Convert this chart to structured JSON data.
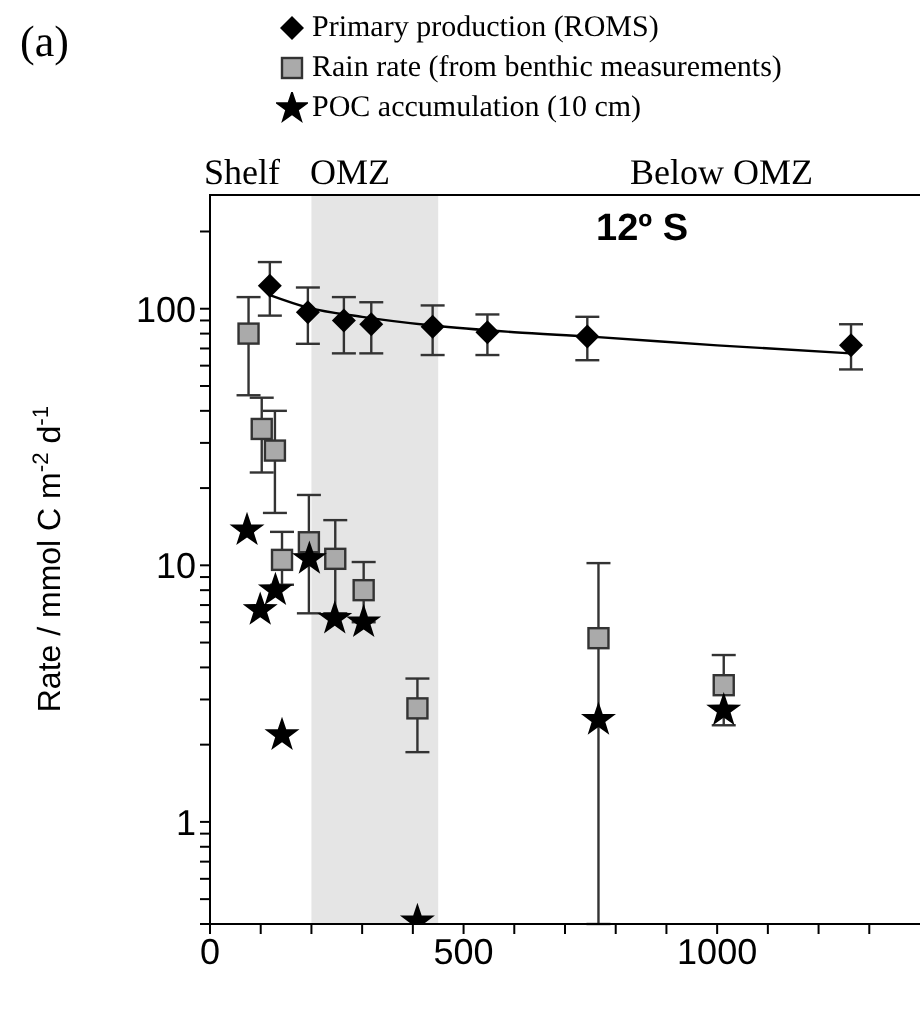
{
  "chart_data": {
    "type": "scatter",
    "ylabel": "Rate / mmol C m$^{-2}$ d$^{-1}$",
    "log": "y",
    "xlim": [
      0,
      1400
    ],
    "xticks": [
      0,
      {
        "value": 100,
        "label": null
      },
      {
        "value": 200,
        "label": null
      },
      {
        "value": 300,
        "label": null
      },
      {
        "value": 400,
        "label": null
      },
      500,
      {
        "value": 600,
        "label": null
      },
      {
        "value": 700,
        "label": null
      },
      {
        "value": 800,
        "label": null
      },
      {
        "value": 900,
        "label": null
      },
      1000,
      {
        "value": 1100,
        "label": null
      },
      {
        "value": 1200,
        "label": null
      },
      {
        "value": 1300,
        "label": null
      }
    ],
    "ylim": [
      0.4,
      280
    ],
    "yticks": [
      {
        "value": 0.4,
        "label": null
      },
      {
        "value": 0.5,
        "label": null
      },
      {
        "value": 0.6,
        "label": null
      },
      {
        "value": 0.7,
        "label": null
      },
      {
        "value": 0.8,
        "label": null
      },
      {
        "value": 0.9,
        "label": null
      },
      1,
      {
        "value": 2,
        "label": null
      },
      {
        "value": 3,
        "label": null
      },
      {
        "value": 4,
        "label": null
      },
      {
        "value": 5,
        "label": null
      },
      {
        "value": 6,
        "label": null
      },
      {
        "value": 7,
        "label": null
      },
      {
        "value": 8,
        "label": null
      },
      {
        "value": 9,
        "label": null
      },
      10,
      {
        "value": 20,
        "label": null
      },
      {
        "value": 30,
        "label": null
      },
      {
        "value": 40,
        "label": null
      },
      {
        "value": 50,
        "label": null
      },
      {
        "value": 60,
        "label": null
      },
      {
        "value": 70,
        "label": null
      },
      {
        "value": 80,
        "label": null
      },
      {
        "value": 90,
        "label": null
      },
      100,
      {
        "value": 200,
        "label": null
      }
    ],
    "legend": "top",
    "bands": [
      {
        "axis": "x",
        "from": 200,
        "to": 450,
        "color": "#e5e5e5"
      }
    ],
    "annotations": [
      "(a)",
      "Shelf",
      "OMZ",
      "Below OMZ",
      "12º S"
    ],
    "series": [
      {
        "name": "Primary production (ROMS)",
        "marker": "diamond",
        "color": "#000000",
        "x": [
          118,
          193,
          264,
          318,
          439,
          547,
          744,
          1264
        ],
        "values": [
          123,
          97,
          90,
          87,
          85,
          81,
          78,
          72
        ],
        "errors": [
          [
            94,
            152
          ],
          [
            73,
            121
          ],
          [
            67,
            111
          ],
          [
            67,
            106
          ],
          [
            66,
            103
          ],
          [
            66,
            95
          ],
          [
            63,
            93
          ],
          [
            58,
            87
          ]
        ]
      },
      {
        "name": "Rain rate (from benthic measurements)",
        "marker": "square",
        "color": "#aaaaaa",
        "x": [
          76,
          102,
          128,
          142,
          195,
          247,
          303,
          409,
          766,
          1013
        ],
        "values": [
          80,
          34,
          28,
          10.5,
          12.3,
          10.6,
          8.0,
          2.77,
          5.2,
          3.41
        ],
        "errors": [
          [
            46,
            111
          ],
          [
            23,
            45
          ],
          [
            16,
            40
          ],
          [
            8.4,
            13.5
          ],
          [
            6.5,
            18.8
          ],
          [
            6.5,
            15
          ],
          [
            6,
            10.3
          ],
          [
            1.87,
            3.62
          ],
          [
            0.4,
            10.2
          ],
          [
            2.38,
            4.47
          ]
        ]
      },
      {
        "name": "POC accumulation (10 cm)",
        "marker": "star",
        "color": "#000000",
        "x": [
          73,
          99,
          129,
          142,
          196,
          246,
          303,
          409,
          766,
          1013
        ],
        "values": [
          13.7,
          6.7,
          8.0,
          2.18,
          10.6,
          6.2,
          6.0,
          0.41,
          2.5,
          2.72
        ]
      },
      {
        "type": "line",
        "color": "#000000",
        "marker": "none",
        "x": [
          118,
          193,
          300,
          439,
          600,
          744,
          1000,
          1264
        ],
        "values": [
          113,
          101,
          93,
          86,
          81,
          78,
          72,
          67
        ]
      }
    ]
  }
}
